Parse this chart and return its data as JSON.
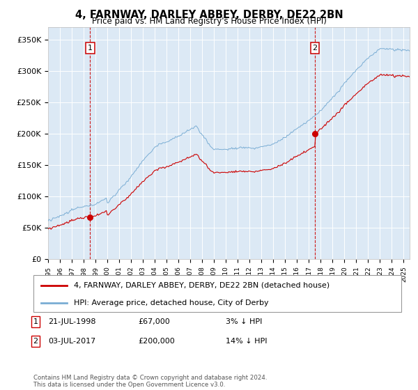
{
  "title": "4, FARNWAY, DARLEY ABBEY, DERBY, DE22 2BN",
  "subtitle": "Price paid vs. HM Land Registry's House Price Index (HPI)",
  "hpi_color": "#7aadd4",
  "price_color": "#cc0000",
  "plot_bg": "#dce9f5",
  "ylim": [
    0,
    370000
  ],
  "yticks": [
    0,
    50000,
    100000,
    150000,
    200000,
    250000,
    300000,
    350000
  ],
  "ytick_labels": [
    "£0",
    "£50K",
    "£100K",
    "£150K",
    "£200K",
    "£250K",
    "£300K",
    "£350K"
  ],
  "sale1_date": 1998.54,
  "sale1_price": 67000,
  "sale1_label": "1",
  "sale2_date": 2017.5,
  "sale2_price": 200000,
  "sale2_label": "2",
  "legend_line1": "4, FARNWAY, DARLEY ABBEY, DERBY, DE22 2BN (detached house)",
  "legend_line2": "HPI: Average price, detached house, City of Derby",
  "footer": "Contains HM Land Registry data © Crown copyright and database right 2024.\nThis data is licensed under the Open Government Licence v3.0.",
  "xmin": 1995.0,
  "xmax": 2025.5
}
